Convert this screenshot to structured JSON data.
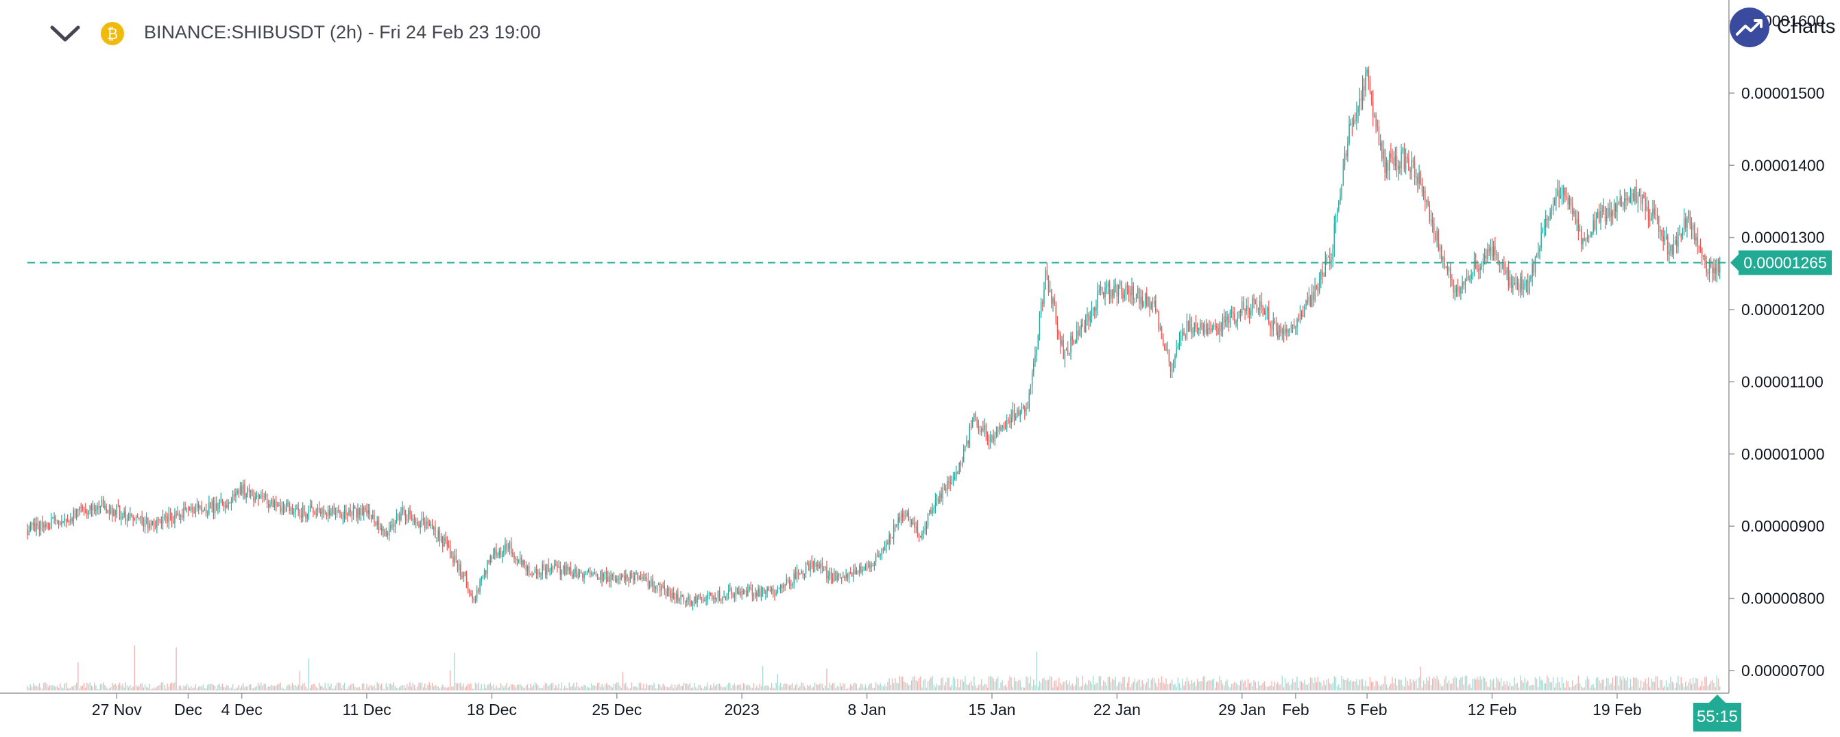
{
  "header": {
    "title": "BINANCE:SHIBUSDT (2h) - Fri 24 Feb 23 19:00",
    "collapse_icon": "chevron-down-icon",
    "coin_icon": "bitcoin-coin-icon",
    "coin_symbol": "₿"
  },
  "brand": {
    "label": "Charts",
    "icon": "trending-up-icon"
  },
  "timer": {
    "label": "55:15"
  },
  "colors": {
    "up": "#26a69a",
    "down": "#ef5350",
    "up_volume": "#a7dad3",
    "down_volume": "#f7b2b0",
    "accent": "#22ab94",
    "axis_text": "#131722",
    "logo": "#3a4a9f"
  },
  "chart_data": {
    "type": "candlestick",
    "symbol": "BINANCE:SHIBUSDT",
    "interval": "2h",
    "x_ticks": [
      "27 Nov",
      "Dec",
      "4 Dec",
      "11 Dec",
      "18 Dec",
      "25 Dec",
      "2023",
      "8 Jan",
      "15 Jan",
      "22 Jan",
      "29 Jan",
      "Feb",
      "5 Feb",
      "12 Feb",
      "19 Feb"
    ],
    "y_ticks": [
      "0.00000700",
      "0.00000800",
      "0.00000900",
      "0.00001000",
      "0.00001100",
      "0.00001200",
      "0.00001300",
      "0.00001400",
      "0.00001500",
      "0.00001600"
    ],
    "ylim": [
      6.8e-06,
      1.61e-05
    ],
    "xrange": [
      "2022-11-22",
      "2023-02-24"
    ],
    "current_price": {
      "value": 1.265e-05,
      "label": "0.00001265"
    },
    "grid": false,
    "price_path": [
      [
        "2022-11-22",
        8.95e-06
      ],
      [
        "2022-11-24",
        9.1e-06
      ],
      [
        "2022-11-26",
        9.3e-06
      ],
      [
        "2022-11-27",
        9.2e-06
      ],
      [
        "2022-11-29",
        9e-06
      ],
      [
        "2022-12-01",
        9.2e-06
      ],
      [
        "2022-12-03",
        9.3e-06
      ],
      [
        "2022-12-04",
        9.5e-06
      ],
      [
        "2022-12-05",
        9.4e-06
      ],
      [
        "2022-12-07",
        9.2e-06
      ],
      [
        "2022-12-09",
        9.2e-06
      ],
      [
        "2022-12-11",
        9.2e-06
      ],
      [
        "2022-12-12",
        8.9e-06
      ],
      [
        "2022-12-13",
        9.2e-06
      ],
      [
        "2022-12-15",
        8.9e-06
      ],
      [
        "2022-12-16",
        8.5e-06
      ],
      [
        "2022-12-17",
        8e-06
      ],
      [
        "2022-12-18",
        8.6e-06
      ],
      [
        "2022-12-19",
        8.7e-06
      ],
      [
        "2022-12-20",
        8.4e-06
      ],
      [
        "2022-12-22",
        8.4e-06
      ],
      [
        "2022-12-24",
        8.3e-06
      ],
      [
        "2022-12-26",
        8.3e-06
      ],
      [
        "2022-12-27",
        8.2e-06
      ],
      [
        "2022-12-29",
        7.95e-06
      ],
      [
        "2022-12-30",
        8e-06
      ],
      [
        "2023-01-01",
        8.1e-06
      ],
      [
        "2023-01-03",
        8.1e-06
      ],
      [
        "2023-01-05",
        8.5e-06
      ],
      [
        "2023-01-06",
        8.3e-06
      ],
      [
        "2023-01-08",
        8.4e-06
      ],
      [
        "2023-01-09",
        8.7e-06
      ],
      [
        "2023-01-10",
        9.2e-06
      ],
      [
        "2023-01-11",
        8.9e-06
      ],
      [
        "2023-01-12",
        9.4e-06
      ],
      [
        "2023-01-13",
        9.7e-06
      ],
      [
        "2023-01-14",
        1.05e-05
      ],
      [
        "2023-01-15",
        1.02e-05
      ],
      [
        "2023-01-16",
        1.05e-05
      ],
      [
        "2023-01-17",
        1.06e-05
      ],
      [
        "2023-01-18",
        1.25e-05
      ],
      [
        "2023-01-19",
        1.14e-05
      ],
      [
        "2023-01-20",
        1.17e-05
      ],
      [
        "2023-01-21",
        1.22e-05
      ],
      [
        "2023-01-22",
        1.23e-05
      ],
      [
        "2023-01-23",
        1.22e-05
      ],
      [
        "2023-01-24",
        1.21e-05
      ],
      [
        "2023-01-25",
        1.12e-05
      ],
      [
        "2023-01-26",
        1.18e-05
      ],
      [
        "2023-01-27",
        1.17e-05
      ],
      [
        "2023-01-28",
        1.18e-05
      ],
      [
        "2023-01-29",
        1.2e-05
      ],
      [
        "2023-01-30",
        1.21e-05
      ],
      [
        "2023-01-31",
        1.17e-05
      ],
      [
        "2023-02-01",
        1.18e-05
      ],
      [
        "2023-02-02",
        1.22e-05
      ],
      [
        "2023-02-03",
        1.28e-05
      ],
      [
        "2023-02-04",
        1.45e-05
      ],
      [
        "2023-02-05",
        1.52e-05
      ],
      [
        "2023-02-06",
        1.4e-05
      ],
      [
        "2023-02-07",
        1.41e-05
      ],
      [
        "2023-02-08",
        1.38e-05
      ],
      [
        "2023-02-09",
        1.29e-05
      ],
      [
        "2023-02-10",
        1.22e-05
      ],
      [
        "2023-02-11",
        1.26e-05
      ],
      [
        "2023-02-12",
        1.28e-05
      ],
      [
        "2023-02-13",
        1.24e-05
      ],
      [
        "2023-02-14",
        1.23e-05
      ],
      [
        "2023-02-15",
        1.32e-05
      ],
      [
        "2023-02-16",
        1.37e-05
      ],
      [
        "2023-02-17",
        1.3e-05
      ],
      [
        "2023-02-18",
        1.33e-05
      ],
      [
        "2023-02-19",
        1.34e-05
      ],
      [
        "2023-02-20",
        1.36e-05
      ],
      [
        "2023-02-21",
        1.33e-05
      ],
      [
        "2023-02-22",
        1.28e-05
      ],
      [
        "2023-02-23",
        1.33e-05
      ],
      [
        "2023-02-24",
        1.26e-05
      ]
    ]
  }
}
